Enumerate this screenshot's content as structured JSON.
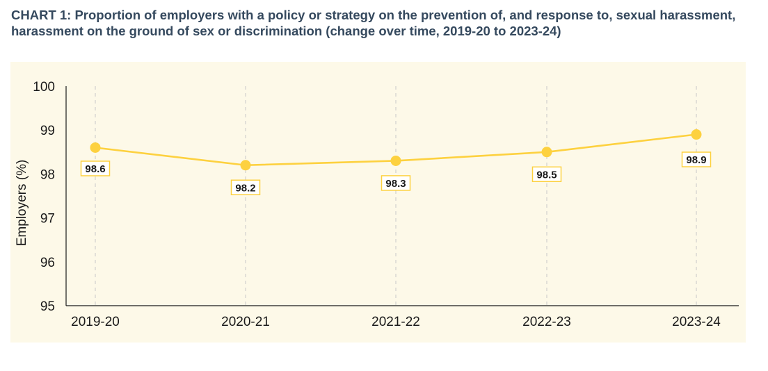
{
  "title": "CHART 1: Proportion of employers with a policy or strategy on the prevention of, and response to, sexual harassment, harassment on the ground of sex or discrimination (change over time, 2019-20 to 2023-24)",
  "colors": {
    "title": "#35495e",
    "panel_background": "#fdf9e8",
    "series_line": "#fdd13f",
    "series_marker": "#fdd13f",
    "label_border": "#fdd13f",
    "gridline": "#c8c8c8",
    "axis": "#1a1a1a"
  },
  "chart_data": {
    "type": "line",
    "title": "CHART 1: Proportion of employers with a policy or strategy on the prevention of, and response to, sexual harassment, harassment on the ground of sex or discrimination (change over time, 2019-20 to 2023-24)",
    "xlabel": "",
    "ylabel": "Employers (%)",
    "categories": [
      "2019-20",
      "2020-21",
      "2021-22",
      "2022-23",
      "2023-24"
    ],
    "series": [
      {
        "values": [
          98.6,
          98.2,
          98.3,
          98.5,
          98.9
        ],
        "labels": [
          "98.6",
          "98.2",
          "98.3",
          "98.5",
          "98.9"
        ]
      }
    ],
    "ylim": [
      95,
      100
    ],
    "yticks": [
      "95",
      "96",
      "97",
      "98",
      "99",
      "100"
    ],
    "grid": "vertical dashed",
    "legend": "none"
  }
}
